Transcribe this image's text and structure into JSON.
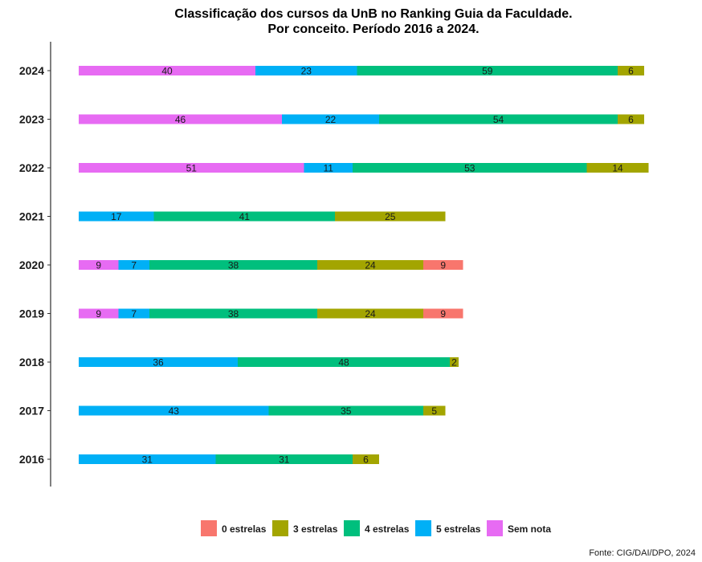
{
  "chart_data": {
    "type": "bar",
    "orientation": "horizontal",
    "stacked": true,
    "title": [
      "Classificação dos cursos da UnB no Ranking Guia da Faculdade.",
      "Por conceito. Período 2016 a 2024."
    ],
    "caption": "Fonte: CIG/DAI/DPO, 2024",
    "xlabel": "",
    "ylabel": "",
    "xlim": [
      0,
      133
    ],
    "grid": false,
    "legend_position": "bottom",
    "categories": [
      "2016",
      "2017",
      "2018",
      "2019",
      "2020",
      "2021",
      "2022",
      "2023",
      "2024"
    ],
    "series": [
      {
        "name": "Sem nota",
        "color": "#E76BF3",
        "values": [
          0,
          0,
          0,
          9,
          9,
          0,
          51,
          46,
          40
        ]
      },
      {
        "name": "5 estrelas",
        "color": "#00B0F6",
        "values": [
          31,
          43,
          36,
          7,
          7,
          17,
          11,
          22,
          23
        ]
      },
      {
        "name": "4 estrelas",
        "color": "#00BF7D",
        "values": [
          31,
          35,
          48,
          38,
          38,
          41,
          53,
          54,
          59
        ]
      },
      {
        "name": "3 estrelas",
        "color": "#A3A500",
        "values": [
          6,
          5,
          2,
          24,
          24,
          25,
          14,
          6,
          6
        ]
      },
      {
        "name": "0 estrelas",
        "color": "#F8766D",
        "values": [
          0,
          0,
          0,
          9,
          9,
          0,
          0,
          0,
          0
        ]
      }
    ],
    "legend_order": [
      "0 estrelas",
      "3 estrelas",
      "4 estrelas",
      "5 estrelas",
      "Sem nota"
    ]
  }
}
